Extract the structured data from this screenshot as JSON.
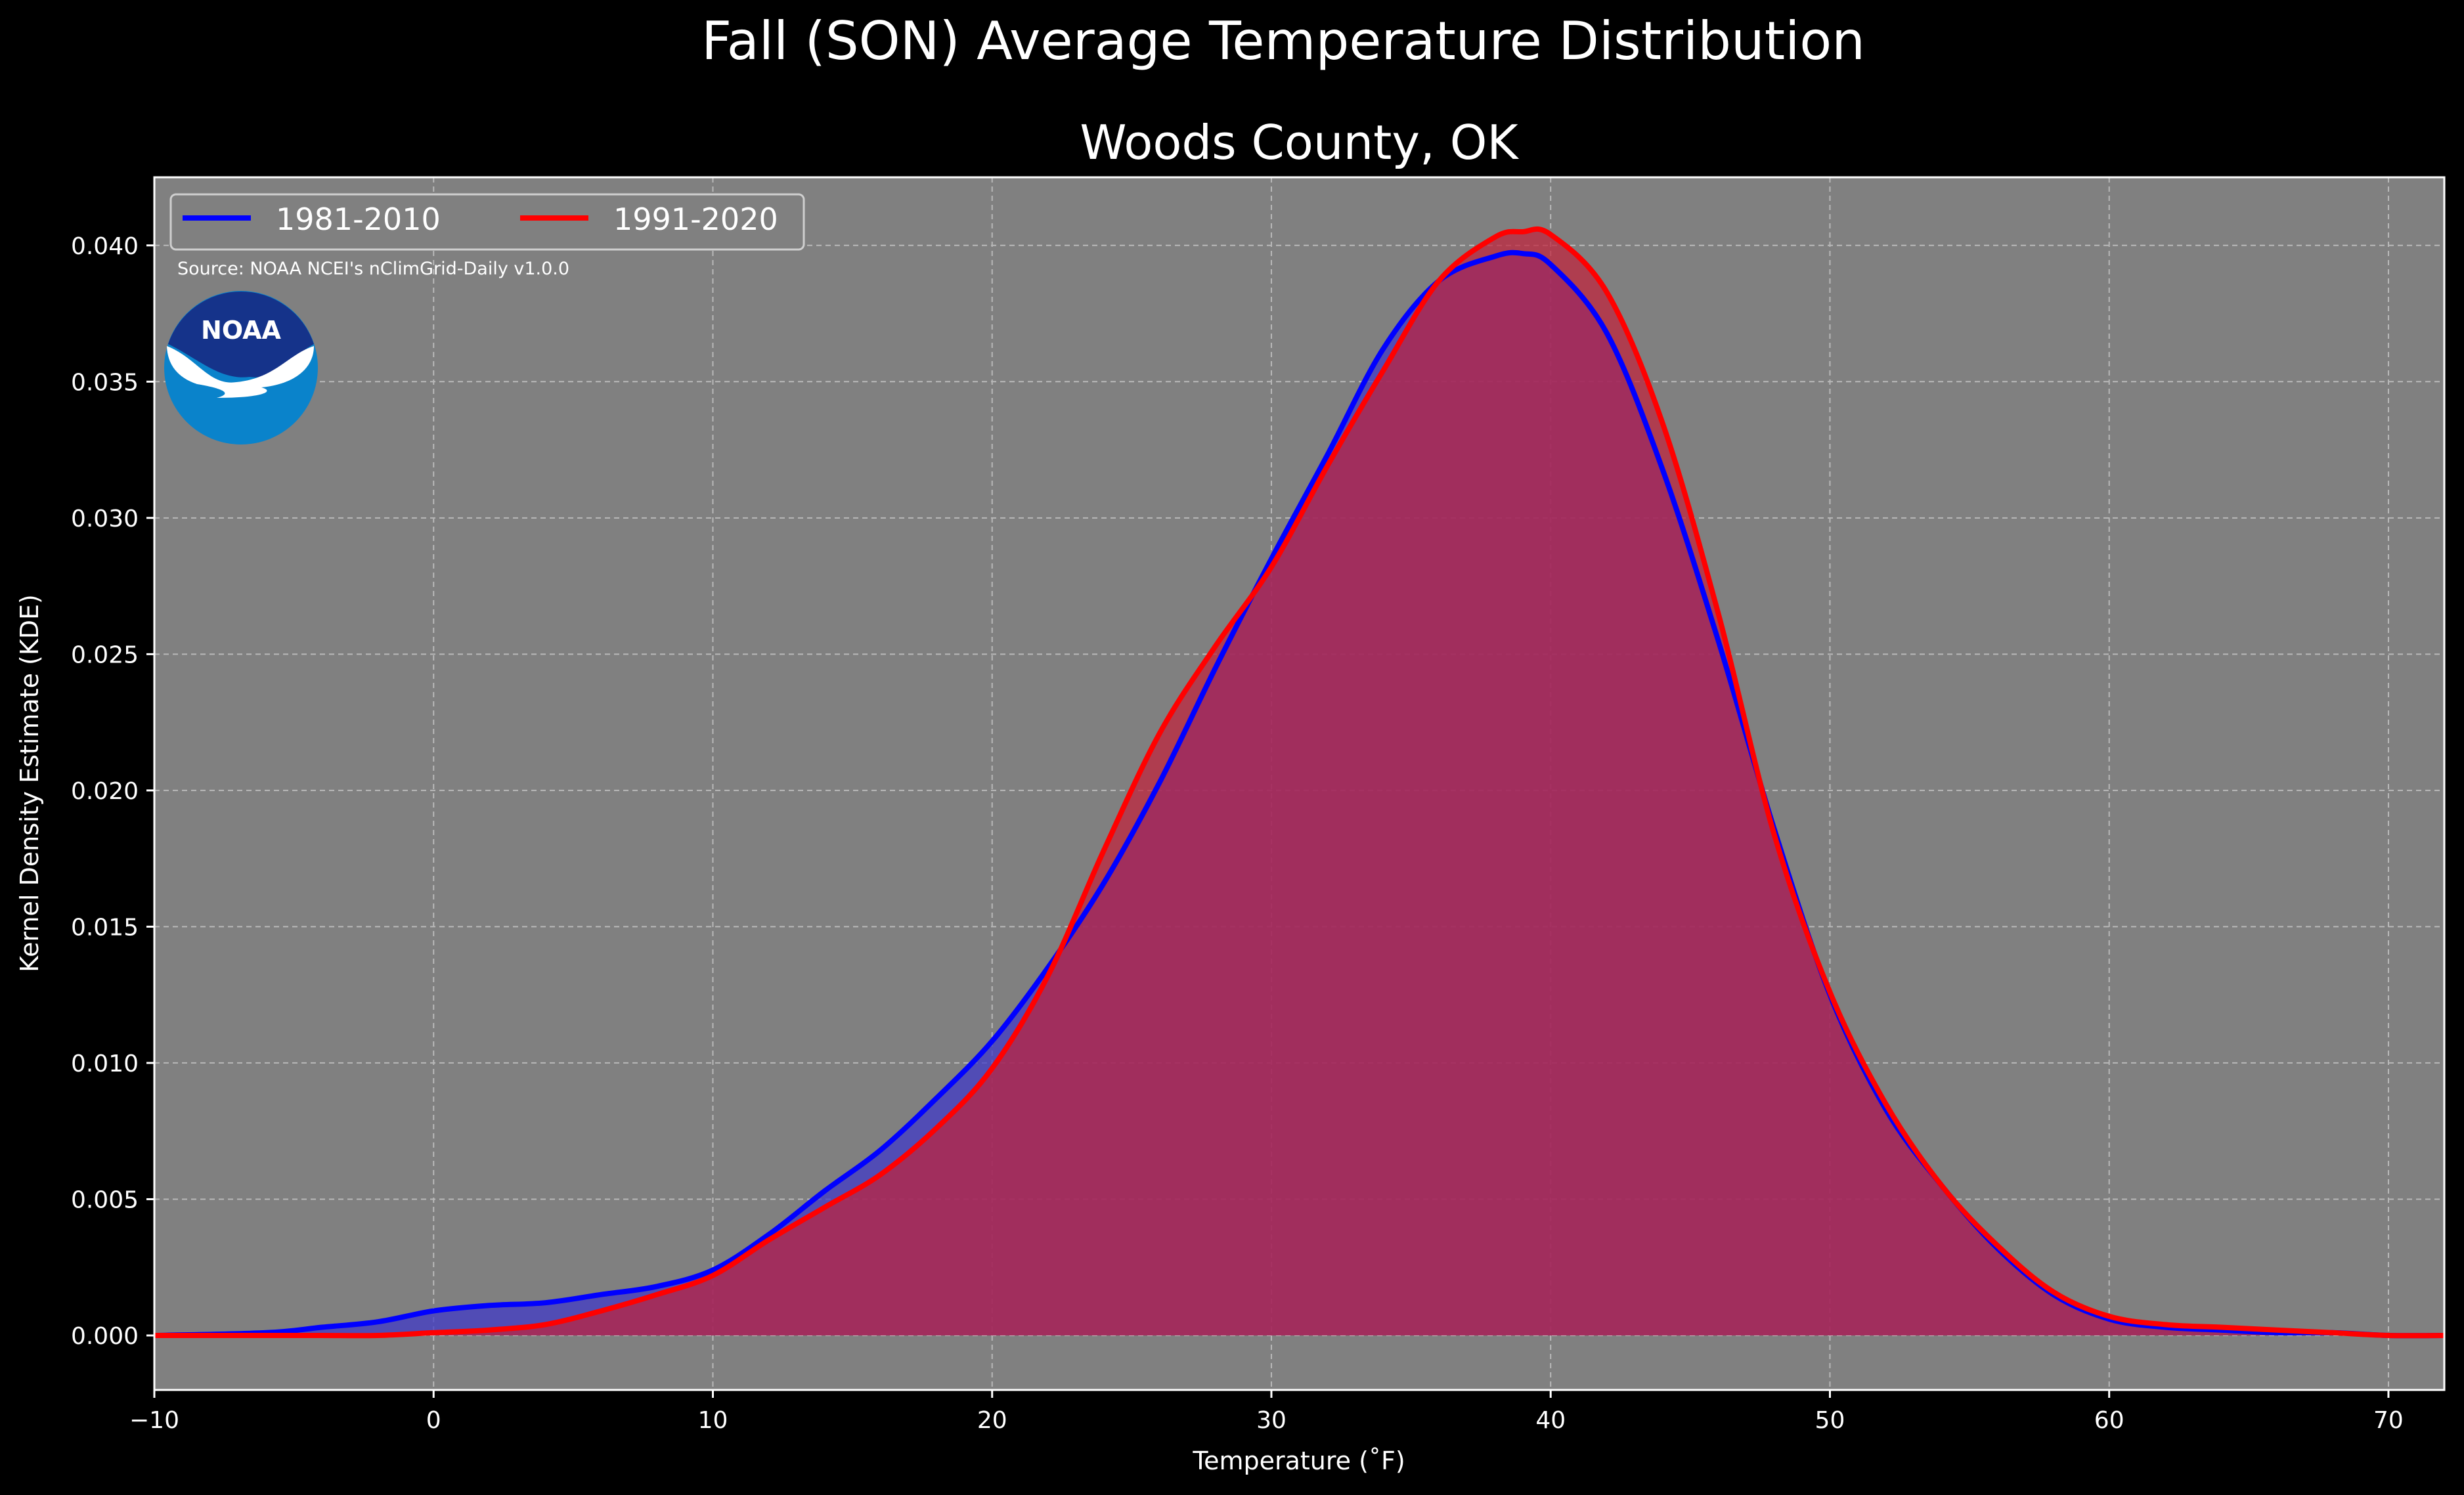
{
  "chart_data": {
    "type": "area",
    "title": "Fall (SON) Average Temperature Distribution",
    "subtitle": "Woods County, OK",
    "xlabel": "Temperature (˚F)",
    "ylabel": "Kernel Density Estimate (KDE)",
    "xlim": [
      -10,
      72
    ],
    "ylim": [
      -0.002,
      0.0425
    ],
    "x_ticks": [
      -10,
      0,
      10,
      20,
      30,
      40,
      50,
      60,
      70
    ],
    "x_tick_labels": [
      "−10",
      "0",
      "10",
      "20",
      "30",
      "40",
      "50",
      "60",
      "70"
    ],
    "y_ticks": [
      0.0,
      0.005,
      0.01,
      0.015,
      0.02,
      0.025,
      0.03,
      0.035,
      0.04
    ],
    "y_tick_labels": [
      "0.000",
      "0.005",
      "0.010",
      "0.015",
      "0.020",
      "0.025",
      "0.030",
      "0.035",
      "0.040"
    ],
    "grid": true,
    "legend_position": "top-left",
    "background_color": "#808080",
    "annotation": "Source: NOAA NCEI's nClimGrid-Daily v1.0.0",
    "logo_text": "NOAA",
    "series": [
      {
        "name": "1981-2010",
        "color": "#0000ff",
        "fill": "#3f37c9",
        "x": [
          -10,
          -6,
          -4,
          -2,
          0,
          2,
          4,
          6,
          8,
          10,
          12,
          14,
          16,
          18,
          20,
          22,
          24,
          26,
          28,
          30,
          32,
          34,
          36,
          38,
          39,
          40,
          42,
          44,
          46,
          48,
          50,
          52,
          54,
          56,
          58,
          60,
          62,
          64,
          66,
          68,
          70,
          72
        ],
        "y": [
          0.0,
          0.0001,
          0.0003,
          0.0005,
          0.0009,
          0.0011,
          0.0012,
          0.0015,
          0.0018,
          0.0024,
          0.0037,
          0.0053,
          0.0068,
          0.0087,
          0.0108,
          0.0135,
          0.0166,
          0.0203,
          0.0245,
          0.0285,
          0.0323,
          0.0362,
          0.0387,
          0.0396,
          0.0397,
          0.0393,
          0.0368,
          0.0318,
          0.0255,
          0.0186,
          0.0125,
          0.0083,
          0.0055,
          0.0032,
          0.0015,
          0.0006,
          0.0003,
          0.0002,
          0.0001,
          0.0001,
          0.0,
          0.0
        ]
      },
      {
        "name": "1991-2020",
        "color": "#ff0000",
        "fill": "#c0223c",
        "x": [
          -10,
          -6,
          -4,
          -2,
          0,
          2,
          4,
          6,
          8,
          10,
          12,
          14,
          16,
          18,
          20,
          22,
          24,
          26,
          28,
          30,
          32,
          34,
          36,
          38,
          39,
          40,
          42,
          44,
          46,
          48,
          50,
          52,
          54,
          56,
          58,
          60,
          62,
          64,
          66,
          68,
          70,
          72
        ],
        "y": [
          0.0,
          0.0,
          0.0,
          0.0,
          0.0001,
          0.0002,
          0.0004,
          0.0009,
          0.0015,
          0.0022,
          0.0035,
          0.0047,
          0.0059,
          0.0076,
          0.0098,
          0.0132,
          0.0178,
          0.0221,
          0.0253,
          0.0282,
          0.0319,
          0.0354,
          0.0387,
          0.0403,
          0.0405,
          0.0404,
          0.0383,
          0.0335,
          0.0265,
          0.0184,
          0.0126,
          0.0085,
          0.0055,
          0.0033,
          0.0016,
          0.0007,
          0.0004,
          0.0003,
          0.0002,
          0.0001,
          0.0,
          0.0
        ]
      }
    ]
  }
}
